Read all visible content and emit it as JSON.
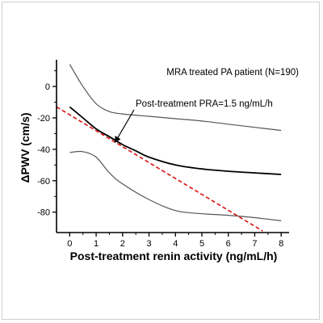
{
  "chart_data": {
    "type": "line",
    "title": "",
    "xlabel": "Post-treatment renin activity (ng/mL/h)",
    "ylabel": "ΔPWV (cm/s)",
    "xlim": [
      -0.5,
      8.3
    ],
    "ylim": [
      -93,
      17
    ],
    "xticks": [
      0,
      1,
      2,
      3,
      4,
      5,
      6,
      7,
      8
    ],
    "yticks": [
      0,
      -20,
      -40,
      -60,
      -80
    ],
    "xtick_labels": [
      "0",
      "1",
      "2",
      "3",
      "4",
      "5",
      "6",
      "7",
      "8"
    ],
    "ytick_labels": [
      "0",
      "-20",
      "-40",
      "-60",
      "-80"
    ],
    "grid": false,
    "legend": null,
    "annotations": [
      {
        "text": "MRA treated PA patient (N=190)"
      },
      {
        "text": "Post-treatment PRA=1.5 ng/mL/h",
        "points_to": [
          1.7,
          -36
        ]
      }
    ],
    "series": [
      {
        "role": "fit",
        "color": "#000000",
        "style": "solid",
        "x": [
          0,
          0.5,
          1,
          1.5,
          2,
          2.5,
          3,
          4,
          5,
          6,
          7,
          8
        ],
        "y": [
          -13,
          -20,
          -27,
          -32,
          -37,
          -41,
          -45,
          -50,
          -52.5,
          -54,
          -55,
          -56
        ]
      },
      {
        "role": "upper-ci",
        "color": "#555555",
        "style": "solid",
        "x": [
          0,
          0.5,
          1,
          1.5,
          2,
          3,
          4,
          5,
          6,
          7,
          8
        ],
        "y": [
          14,
          0,
          -11,
          -16,
          -17.5,
          -19,
          -20.5,
          -22,
          -24,
          -26,
          -28
        ]
      },
      {
        "role": "lower-ci",
        "color": "#555555",
        "style": "solid",
        "x": [
          0,
          0.5,
          1,
          1.5,
          2,
          3,
          4,
          5,
          6,
          7,
          8
        ],
        "y": [
          -42,
          -41.5,
          -45,
          -55,
          -62,
          -72,
          -79,
          -81,
          -82,
          -83.5,
          -85.5
        ]
      },
      {
        "role": "tangent",
        "color": "#dd1111",
        "style": "dashed",
        "x": [
          -0.5,
          7.3
        ],
        "y": [
          -13,
          -92
        ]
      }
    ]
  }
}
